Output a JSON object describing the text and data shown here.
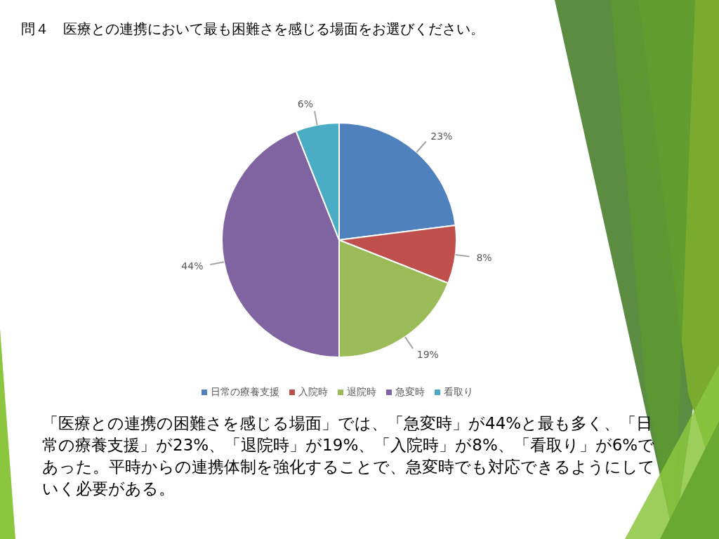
{
  "chart_data": {
    "type": "pie",
    "title": "問４　医療との連携において最も困難さを感じる場面をお選びください。",
    "categories": [
      "日常の療養支援",
      "入院時",
      "退院時",
      "急変時",
      "看取り"
    ],
    "values": [
      23,
      8,
      19,
      44,
      6
    ],
    "value_labels": [
      "23%",
      "8%",
      "19%",
      "44%",
      "6%"
    ],
    "colors": [
      "#4f81bd",
      "#c0504d",
      "#9bbb59",
      "#8064a2",
      "#4bacc6"
    ],
    "legend": "bottom",
    "annotations": [
      "「医療との連携の困難さを感じる場面」では、「急変時」が44%と最も多く、「日常の療養支援」が23%、「退院時」が19%、「入院時」が8%、「看取り」が6%であった。平時からの連携体制を強化することで、急変時でも対応できるようにしていく必要がある。"
    ]
  }
}
